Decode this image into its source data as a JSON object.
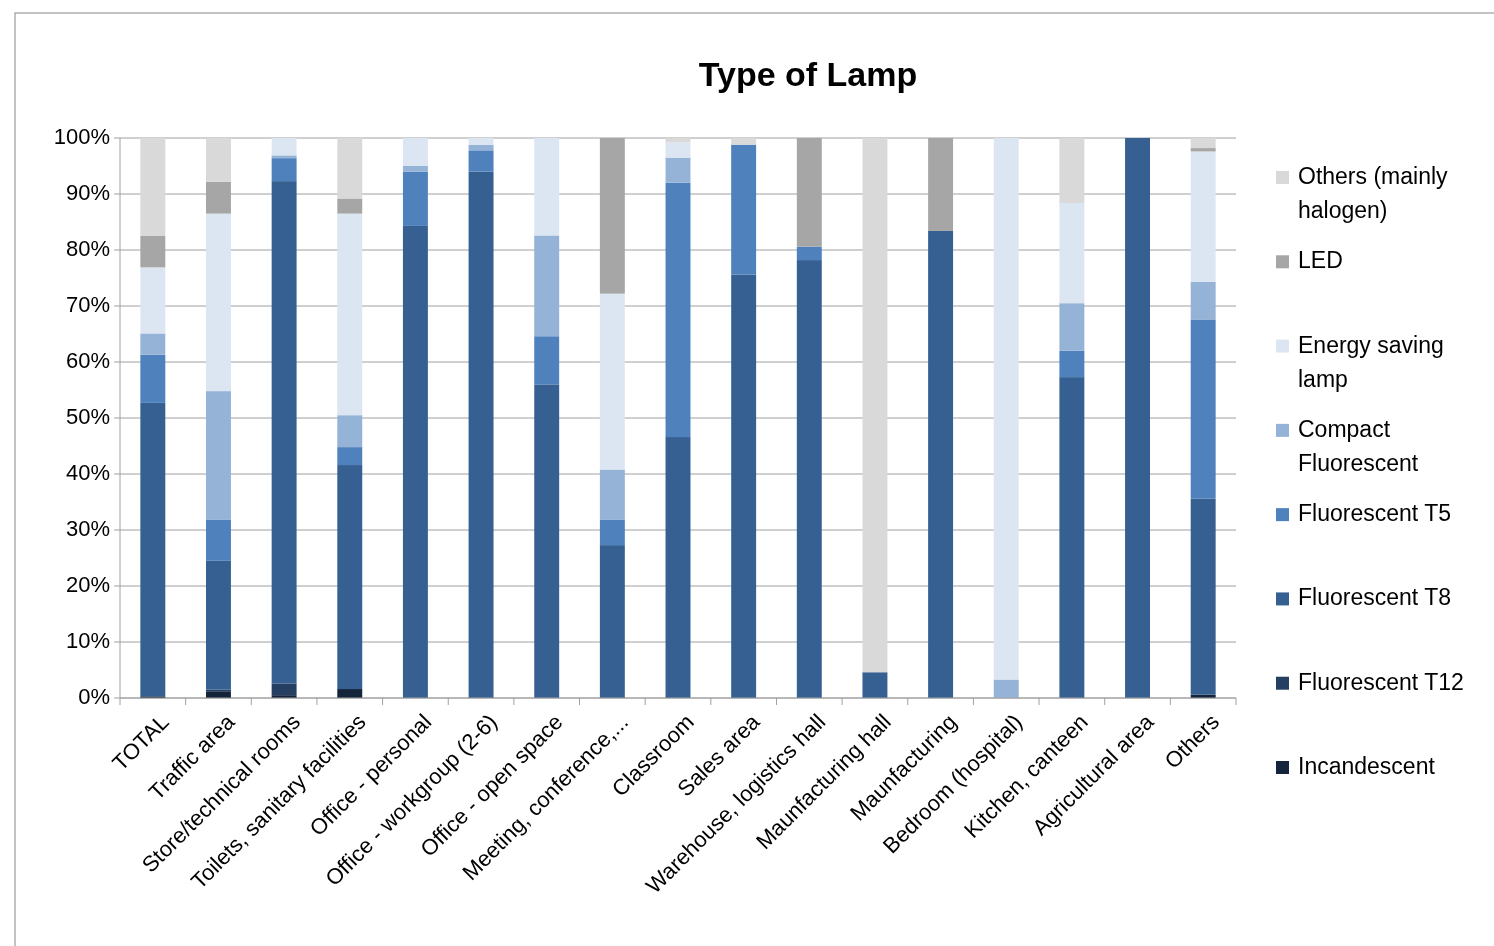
{
  "chart_data": {
    "type": "bar",
    "title": "Type of Lamp",
    "stacked": true,
    "legend": "right",
    "grid": "y",
    "categories": [
      "TOTAL",
      "Traffic area",
      "Store/technical rooms",
      "Toilets, sanitary facilities",
      "Office - personal",
      "Office - workgroup (2-6)",
      "Office - open space",
      "Meeting, conference,...",
      "Classroom",
      "Sales area",
      "Warehouse, logistics hall",
      "Maunfacturing hall",
      "Maunfacturing",
      "Bedroom (hospital)",
      "Kitchen, canteen",
      "Agricultural area",
      "Others"
    ],
    "ylim": [
      0,
      1
    ],
    "yticks": [
      {
        "value": 0,
        "label": "0%"
      },
      {
        "value": 0.1,
        "label": "10%"
      },
      {
        "value": 0.2,
        "label": "20%"
      },
      {
        "value": 0.3,
        "label": "30%"
      },
      {
        "value": 0.4,
        "label": "40%"
      },
      {
        "value": 0.5,
        "label": "50%"
      },
      {
        "value": 0.6,
        "label": "60%"
      },
      {
        "value": 0.7,
        "label": "70%"
      },
      {
        "value": 0.8,
        "label": "80%"
      },
      {
        "value": 0.9,
        "label": "90%"
      },
      {
        "value": 1,
        "label": "100%"
      }
    ],
    "series": [
      {
        "name": "Incandescent",
        "color": "#14243b",
        "values": [
          0.003,
          0.012,
          0.005,
          0.016,
          0,
          0,
          0,
          0,
          0,
          0,
          0,
          0,
          0,
          0,
          0,
          0,
          0.006
        ]
      },
      {
        "name": "Fluorescent T12",
        "color": "#253f62",
        "values": [
          0,
          0.003,
          0.021,
          0,
          0,
          0,
          0,
          0,
          0,
          0,
          0,
          0,
          0,
          0,
          0,
          0,
          0
        ]
      },
      {
        "name": "Fluorescent T8",
        "color": "#366092",
        "values": [
          0.524,
          0.23,
          0.897,
          0.4,
          0.843,
          0.94,
          0.56,
          0.273,
          0.466,
          0.756,
          0.782,
          0.046,
          0.834,
          0,
          0.573,
          1,
          0.35
        ]
      },
      {
        "name": "Fluorescent T5",
        "color": "#4f81bd",
        "values": [
          0.086,
          0.073,
          0.041,
          0.032,
          0.097,
          0.038,
          0.086,
          0.045,
          0.454,
          0.232,
          0.024,
          0,
          0,
          0,
          0.047,
          0,
          0.32
        ]
      },
      {
        "name": "Compact Fluorescent",
        "color": "#95b3d7",
        "values": [
          0.038,
          0.23,
          0.005,
          0.057,
          0.01,
          0.01,
          0.18,
          0.09,
          0.045,
          0,
          0,
          0,
          0,
          0.033,
          0.085,
          0,
          0.067
        ]
      },
      {
        "name": "Energy saving lamp",
        "color": "#dce6f2",
        "values": [
          0.118,
          0.317,
          0.031,
          0.36,
          0.05,
          0.012,
          0.174,
          0.314,
          0.027,
          0,
          0,
          0,
          0,
          0.967,
          0.179,
          0,
          0.233
        ]
      },
      {
        "name": "LED",
        "color": "#a6a6a6",
        "values": [
          0.056,
          0.057,
          0,
          0.027,
          0,
          0,
          0,
          0.278,
          0,
          0,
          0.194,
          0,
          0.166,
          0,
          0,
          0,
          0.006
        ]
      },
      {
        "name": "Others (mainly halogen)",
        "color": "#d9d9d9",
        "values": [
          0.175,
          0.078,
          0,
          0.108,
          0,
          0,
          0,
          0,
          0.008,
          0.012,
          0,
          0.954,
          0,
          0,
          0.116,
          0,
          0.018
        ]
      }
    ]
  }
}
